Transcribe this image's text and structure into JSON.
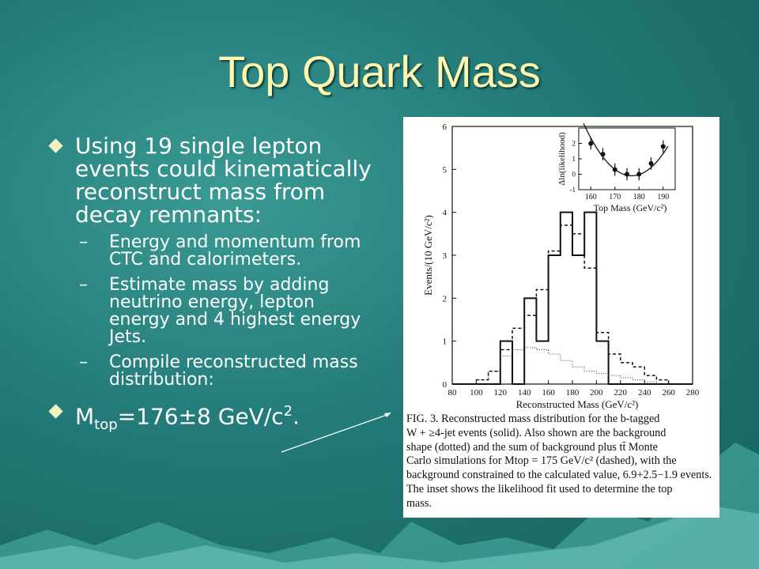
{
  "slide": {
    "title": "Top Quark Mass",
    "bullets": [
      "Using 19 single lepton events could kinematically reconstruct mass from decay remnants:"
    ],
    "sub_bullets": [
      "Energy and momentum from CTC and calorimeters.",
      "Estimate mass by adding neutrino energy, lepton energy and 4 highest energy Jets.",
      "Compile reconstructed mass distribution:"
    ],
    "sub_dash": "–",
    "result": {
      "symbol": "M",
      "subscript": "top",
      "value": "=176±8 GeV/c",
      "superscript": "2",
      "end": "."
    }
  },
  "figure": {
    "caption_lines": [
      "FIG. 3.   Reconstructed mass distribution for the b-tagged",
      "W + ≥4-jet events (solid).  Also shown are the background",
      "shape (dotted) and the sum of background plus tt̄  Monte",
      "Carlo simulations for Mtop = 175 GeV/c² (dashed), with the",
      "background constrained to the calculated value, 6.9+2.5−1.9 events.",
      "The inset shows the likelihood fit used to determine the top",
      "mass."
    ]
  },
  "chart_data": [
    {
      "type": "bar",
      "xlabel": "Reconstructed Mass (GeV/c²)",
      "ylabel": "Events/(10 GeV/c²)",
      "xlim": [
        80,
        280
      ],
      "ylim": [
        0,
        6
      ],
      "x_ticks": [
        "80",
        "100",
        "120",
        "140",
        "160",
        "180",
        "200",
        "220",
        "240",
        "260",
        "280"
      ],
      "y_ticks": [
        "0",
        "1",
        "2",
        "3",
        "4",
        "5",
        "6"
      ],
      "bin_edges": [
        80,
        90,
        100,
        110,
        120,
        130,
        140,
        150,
        160,
        170,
        180,
        190,
        200,
        210,
        220,
        230,
        240,
        250,
        260,
        270,
        280
      ],
      "series": [
        {
          "style": "solid",
          "values": [
            0,
            0,
            0,
            0,
            1,
            0,
            2,
            1,
            3,
            4,
            3,
            4,
            1,
            0,
            0,
            0,
            0,
            0,
            0,
            0
          ]
        },
        {
          "style": "dashed",
          "values": [
            0,
            0,
            0.1,
            0.3,
            0.8,
            1.3,
            1.6,
            2.2,
            3.1,
            3.7,
            3.5,
            2.7,
            1.2,
            0.7,
            0.5,
            0.4,
            0.2,
            0.1,
            0,
            0
          ]
        },
        {
          "style": "dotted",
          "values": [
            0,
            0,
            0.1,
            0.3,
            0.65,
            0.8,
            0.85,
            0.8,
            0.7,
            0.55,
            0.4,
            0.3,
            0.25,
            0.2,
            0.15,
            0.1,
            0.05,
            0,
            0,
            0
          ]
        }
      ]
    },
    {
      "type": "scatter",
      "xlabel": "Top Mass (GeV/c²)",
      "ylabel": "Δln(likelihood)",
      "xlim": [
        155,
        195
      ],
      "ylim": [
        -1,
        3
      ],
      "x_ticks": [
        "160",
        "170",
        "180",
        "190"
      ],
      "y_ticks": [
        "-1",
        "0",
        "1",
        "2"
      ],
      "points": [
        {
          "x": 160,
          "y": 2.0,
          "err": 0.4
        },
        {
          "x": 165,
          "y": 1.3,
          "err": 0.4
        },
        {
          "x": 170,
          "y": 0.3,
          "err": 0.4
        },
        {
          "x": 175,
          "y": 0.0,
          "err": 0.4
        },
        {
          "x": 180,
          "y": 0.0,
          "err": 0.4
        },
        {
          "x": 185,
          "y": 0.7,
          "err": 0.4
        },
        {
          "x": 190,
          "y": 1.8,
          "err": 0.4
        }
      ],
      "fit": "parabola"
    }
  ]
}
